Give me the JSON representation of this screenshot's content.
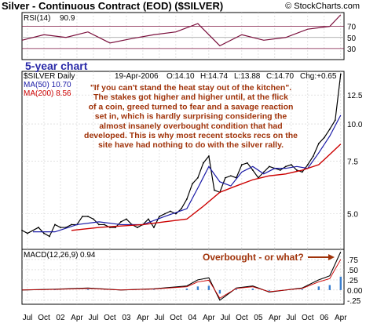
{
  "header": {
    "title": "Silver - Continuous Contract (EOD) ($SILVER)",
    "copyright": "© StockCharts.com"
  },
  "rsi": {
    "label": "RSI(14)",
    "value": "90.9",
    "levels": [
      70,
      50,
      30
    ],
    "ylim": [
      10,
      95
    ],
    "ticks": [
      "70",
      "50",
      "30"
    ]
  },
  "caption": "5-year chart",
  "price_panel": {
    "symbol_label": "$SILVER Daily",
    "ohlc": {
      "date": "19-Apr-2006",
      "open": "O:14.10",
      "high": "H:14.74",
      "low": "L:13.88",
      "close": "C:14.70",
      "change": "Chg:+0.65"
    },
    "ma50": "MA(50) 10.70",
    "ma200": "MA(200) 8.56",
    "annotation": "\"If you can't stand the heat stay out of the kitchen\". The stakes got higher and higher until, at the flick of a coin, greed turned to fear and a savage reaction set in, which is hardly surprising considering the almost insanely overbought condition that had developed. This is why most recent stocks recs on the site have had nothing to do with the silver rally.",
    "y_ticks": [
      "12.5",
      "10.0",
      "7.5",
      "5.0"
    ]
  },
  "macd": {
    "label": "MACD(12,26,9)",
    "value": "0.94",
    "annotation": "Overbought - or what?",
    "y_ticks": [
      ".75",
      ".50",
      ".25",
      "0.00",
      "-.25"
    ]
  },
  "x_axis": {
    "labels": [
      "Jul",
      "Oct",
      "02",
      "Apr",
      "Jul",
      "Oct",
      "03",
      "Apr",
      "Jul",
      "Oct",
      "04",
      "Apr",
      "Jul",
      "Oct",
      "05",
      "Apr",
      "Jul",
      "Oct",
      "06",
      "Apr"
    ]
  },
  "colors": {
    "price_bars": "#000000",
    "ma50": "#1a1aa6",
    "ma200": "#cc0000",
    "annotation_text": "#a0330a",
    "caption": "#2a2aa8",
    "rsi_line": "#7a0f3c",
    "macd_line": "#000000",
    "macd_signal": "#cc0000",
    "macd_hist": "#3a7fd0",
    "grid": "#d0d0d0"
  },
  "chart_data": {
    "type": "line",
    "title": "Silver - Continuous Contract (EOD) ($SILVER)",
    "x_label_dates": [
      "2001-07",
      "2001-10",
      "2002-01",
      "2002-04",
      "2002-07",
      "2002-10",
      "2003-01",
      "2003-04",
      "2003-07",
      "2003-10",
      "2004-01",
      "2004-04",
      "2004-07",
      "2004-10",
      "2005-01",
      "2005-04",
      "2005-07",
      "2005-10",
      "2006-01",
      "2006-04"
    ],
    "price": {
      "x": [
        "2001-06",
        "2001-07",
        "2001-09",
        "2001-10",
        "2001-11",
        "2001-12",
        "2002-01",
        "2002-02",
        "2002-03",
        "2002-04",
        "2002-05",
        "2002-06",
        "2002-07",
        "2002-08",
        "2002-09",
        "2002-10",
        "2002-11",
        "2002-12",
        "2003-01",
        "2003-02",
        "2003-03",
        "2003-04",
        "2003-05",
        "2003-06",
        "2003-07",
        "2003-08",
        "2003-09",
        "2003-10",
        "2003-11",
        "2003-12",
        "2004-01",
        "2004-02",
        "2004-03",
        "2004-04",
        "2004-05",
        "2004-06",
        "2004-07",
        "2004-08",
        "2004-09",
        "2004-10",
        "2004-11",
        "2004-12",
        "2005-01",
        "2005-02",
        "2005-03",
        "2005-04",
        "2005-05",
        "2005-06",
        "2005-07",
        "2005-08",
        "2005-09",
        "2005-10",
        "2005-11",
        "2005-12",
        "2006-01",
        "2006-02",
        "2006-03",
        "2006-04"
      ],
      "values": [
        4.4,
        4.3,
        4.5,
        4.3,
        4.2,
        4.6,
        4.5,
        4.5,
        4.6,
        4.6,
        4.9,
        4.9,
        4.8,
        4.6,
        4.6,
        4.5,
        4.5,
        4.7,
        4.8,
        4.6,
        4.5,
        4.6,
        4.8,
        4.5,
        4.9,
        5.0,
        5.1,
        5.0,
        5.2,
        5.6,
        6.3,
        6.6,
        7.4,
        7.8,
        6.0,
        5.9,
        6.6,
        6.7,
        6.6,
        7.3,
        7.4,
        7.0,
        6.6,
        6.9,
        7.2,
        7.1,
        7.0,
        7.2,
        7.3,
        7.0,
        6.9,
        7.3,
        7.8,
        8.6,
        9.0,
        9.6,
        10.3,
        14.7
      ]
    },
    "ma50": {
      "x": [
        "2001-08",
        "2001-12",
        "2002-04",
        "2002-08",
        "2002-12",
        "2003-04",
        "2003-08",
        "2003-12",
        "2004-02",
        "2004-04",
        "2004-06",
        "2004-08",
        "2004-10",
        "2004-12",
        "2005-02",
        "2005-04",
        "2005-06",
        "2005-08",
        "2005-10",
        "2005-12",
        "2006-02",
        "2006-04"
      ],
      "values": [
        4.35,
        4.35,
        4.6,
        4.7,
        4.6,
        4.6,
        4.9,
        5.2,
        6.1,
        7.2,
        6.4,
        6.2,
        6.9,
        7.2,
        6.8,
        7.1,
        7.1,
        7.2,
        7.1,
        8.0,
        9.1,
        10.7
      ]
    },
    "ma200": {
      "x": [
        "2002-03",
        "2002-08",
        "2002-12",
        "2003-04",
        "2003-08",
        "2003-12",
        "2004-03",
        "2004-06",
        "2004-09",
        "2004-12",
        "2005-03",
        "2005-06",
        "2005-09",
        "2005-12",
        "2006-02",
        "2006-04"
      ],
      "values": [
        4.4,
        4.5,
        4.55,
        4.6,
        4.7,
        4.8,
        5.3,
        5.9,
        6.2,
        6.5,
        6.7,
        6.8,
        7.0,
        7.3,
        7.9,
        8.56
      ]
    },
    "rsi": {
      "x": [
        "2001-06",
        "2001-10",
        "2002-02",
        "2002-06",
        "2002-10",
        "2003-02",
        "2003-06",
        "2003-10",
        "2004-02",
        "2004-06",
        "2004-10",
        "2005-02",
        "2005-06",
        "2005-10",
        "2006-02",
        "2006-04"
      ],
      "values": [
        45,
        55,
        50,
        60,
        40,
        48,
        55,
        60,
        75,
        35,
        55,
        45,
        50,
        65,
        70,
        90.9
      ]
    },
    "macd": {
      "x": [
        "2001-06",
        "2001-12",
        "2002-06",
        "2002-12",
        "2003-06",
        "2003-12",
        "2004-02",
        "2004-04",
        "2004-06",
        "2004-09",
        "2004-12",
        "2005-03",
        "2005-06",
        "2005-09",
        "2005-12",
        "2006-02",
        "2006-04"
      ],
      "values": [
        0.0,
        0.02,
        0.05,
        0.0,
        0.03,
        0.1,
        0.25,
        0.3,
        -0.25,
        0.05,
        0.1,
        -0.05,
        0.0,
        0.05,
        0.25,
        0.35,
        0.94
      ]
    },
    "y_range_price": [
      3.8,
      15.0
    ],
    "y_range_rsi": [
      10,
      95
    ],
    "y_range_macd": [
      -0.35,
      1.0
    ]
  }
}
